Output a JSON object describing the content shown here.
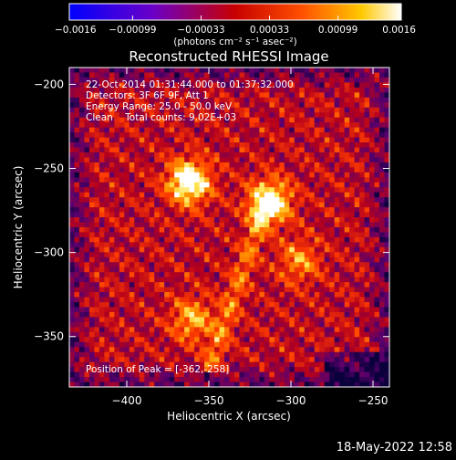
{
  "chart_data": {
    "type": "heatmap",
    "title": "Reconstructed RHESSI Image",
    "xlabel": "Heliocentric X (arcsec)",
    "ylabel": "Heliocentric Y (arcsec)",
    "xlim": [
      -435,
      -240
    ],
    "ylim": [
      -380,
      -190
    ],
    "x_ticks": [
      -400,
      -350,
      -300,
      -250
    ],
    "y_ticks": [
      -200,
      -250,
      -300,
      -350
    ],
    "x_tick_labels": [
      "−400",
      "−350",
      "−300",
      "−250"
    ],
    "y_tick_labels": [
      "−200",
      "−250",
      "−300",
      "−350"
    ],
    "colorbar": {
      "range": [
        -0.0016,
        0.0016
      ],
      "ticks": [
        -0.0016,
        -0.00099,
        -0.00033,
        0.00033,
        0.00099,
        0.0016
      ],
      "tick_labels": [
        "−0.0016",
        "−0.00099",
        "−0.00033",
        "0.00033",
        "0.00099",
        "0.0016"
      ],
      "units": "(photons cm⁻² s⁻¹ asec⁻²)",
      "colormap": "blue-purple-red-orange-yellow-white"
    },
    "annotations": [
      "22-Oct-2014 01:31:44.000 to 01:37:32.000",
      "Detectors: 3F 6F 9F, Att 1",
      "Energy Range: 25.0 - 50.0 keV",
      "Clean    Total counts: 9.02E+03"
    ],
    "peak_label": "Position of Peak = [-362,-258]",
    "sources": [
      {
        "x": -362,
        "y": -258,
        "intensity": 1.0
      },
      {
        "x": -313,
        "y": -270,
        "intensity": 0.95
      },
      {
        "x": -360,
        "y": -340,
        "intensity": 0.55
      },
      {
        "x": -295,
        "y": -305,
        "intensity": 0.45
      }
    ]
  },
  "footer": {
    "timestamp": "18-May-2022 12:58"
  }
}
